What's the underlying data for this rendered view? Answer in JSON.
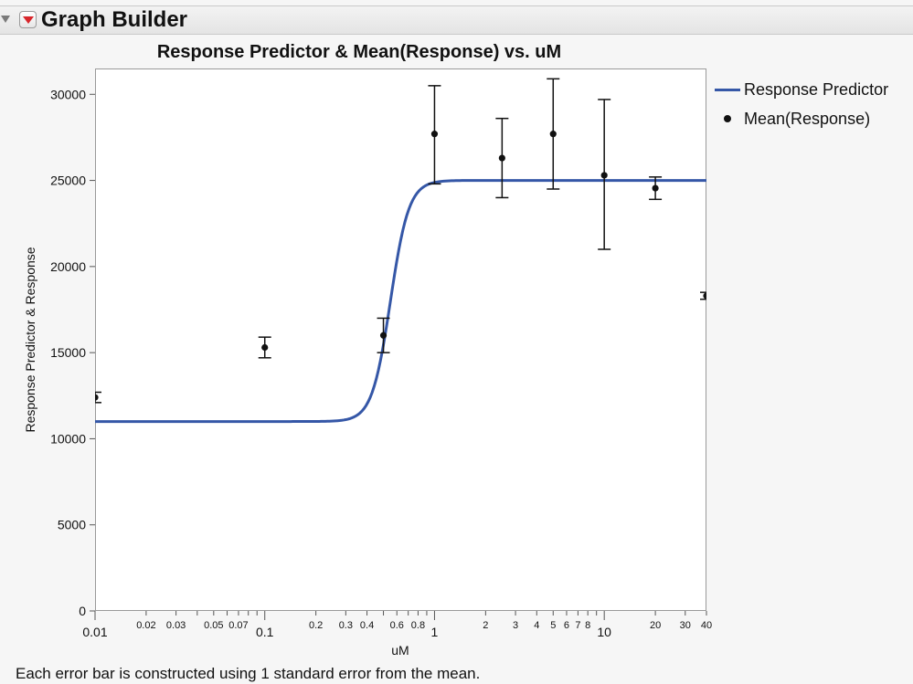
{
  "header": {
    "title": "Graph Builder"
  },
  "footnote": "Each error bar is constructed using 1 standard error from the mean.",
  "colors": {
    "series_line": "#3557a7",
    "points": "#111111"
  },
  "chart_data": {
    "type": "line",
    "title": "Response Predictor & Mean(Response) vs. uM",
    "xlabel": "uM",
    "ylabel": "Response Predictor & Response",
    "xscale": "log",
    "xlim": [
      0.01,
      40
    ],
    "ylim": [
      0,
      31500
    ],
    "grid": false,
    "legend_position": "right",
    "y_ticks": [
      0,
      5000,
      10000,
      15000,
      20000,
      25000,
      30000
    ],
    "x_ticks_major": [
      0.01,
      0.1,
      1,
      10
    ],
    "x_ticks_minor_labeled": [
      0.02,
      0.03,
      0.05,
      0.07,
      0.2,
      0.3,
      0.4,
      0.6,
      0.8,
      2,
      3,
      4,
      5,
      6,
      7,
      8,
      20,
      30,
      40
    ],
    "x_ticks_minor_unlabeled": [
      0.04,
      0.06,
      0.08,
      0.09,
      0.5,
      0.7,
      0.9,
      9
    ],
    "series": [
      {
        "name": "Response Predictor",
        "kind": "curve",
        "model": "logistic",
        "bottom": 11000,
        "top": 25000,
        "ec50": 0.55,
        "hill": 8
      },
      {
        "name": "Mean(Response)",
        "kind": "points",
        "points": [
          {
            "x": 0.01,
            "y": 12400,
            "lo": 12100,
            "hi": 12700
          },
          {
            "x": 0.1,
            "y": 15300,
            "lo": 14700,
            "hi": 15900
          },
          {
            "x": 0.5,
            "y": 16000,
            "lo": 15000,
            "hi": 17000
          },
          {
            "x": 1,
            "y": 27700,
            "lo": 24800,
            "hi": 30500
          },
          {
            "x": 2.5,
            "y": 26300,
            "lo": 24000,
            "hi": 28600
          },
          {
            "x": 5,
            "y": 27700,
            "lo": 24500,
            "hi": 30900
          },
          {
            "x": 10,
            "y": 25300,
            "lo": 21000,
            "hi": 29700
          },
          {
            "x": 20,
            "y": 24550,
            "lo": 23900,
            "hi": 25200
          },
          {
            "x": 40,
            "y": 18300,
            "lo": 18100,
            "hi": 18500
          }
        ]
      }
    ]
  }
}
